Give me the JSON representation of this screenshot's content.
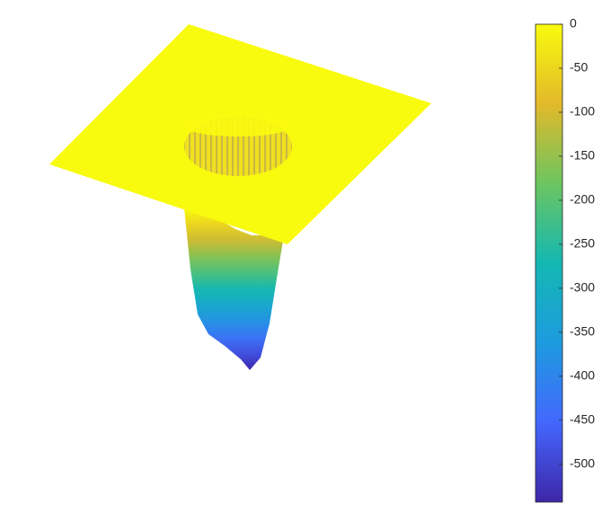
{
  "chart_data": {
    "type": "surface",
    "surface": {
      "plane_z": 0,
      "min_z": -540
    },
    "colorbar": {
      "clim": [
        -543,
        0
      ],
      "ticks": [
        0,
        -50,
        -100,
        -150,
        -200,
        -250,
        -300,
        -350,
        -400,
        -450,
        -500
      ],
      "colormap": [
        "#3e26a8",
        "#4367fd",
        "#1e9bdf",
        "#13b8b2",
        "#6cc560",
        "#e2b92a",
        "#f9fb0e"
      ]
    }
  }
}
